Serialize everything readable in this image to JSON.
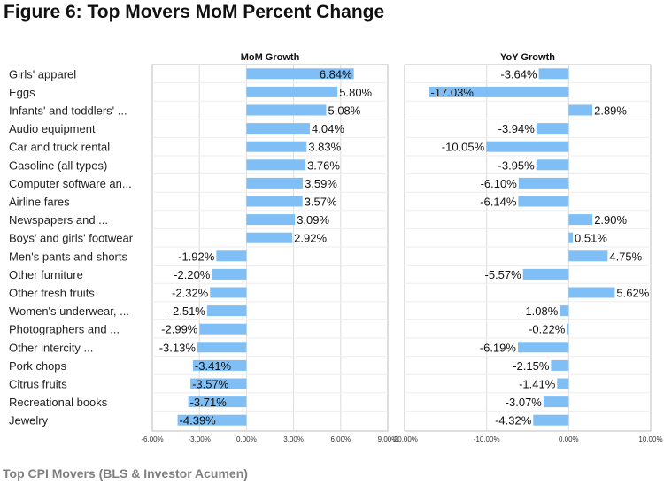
{
  "page": {
    "title": "Figure 6: Top Movers MoM Percent Change",
    "footer": "Top CPI Movers (BLS & Investor Acumen)"
  },
  "colors": {
    "bar": "#7fbff5",
    "grid": "#dcdcdc",
    "axis": "#bdbdbd"
  },
  "chart_data": {
    "type": "bar",
    "orientation": "horizontal",
    "categories": [
      "Girls' apparel",
      "Eggs",
      "Infants' and toddlers' ...",
      "Audio equipment",
      "Car and truck rental",
      "Gasoline (all types)",
      "Computer software an...",
      "Airline fares",
      "Newspapers and ...",
      "Boys' and girls' footwear",
      "Men's pants and shorts",
      "Other furniture",
      "Other fresh fruits",
      "Women's underwear, ...",
      "Photographers and ...",
      "Other intercity ...",
      "Pork chops",
      "Citrus fruits",
      "Recreational books",
      "Jewelry"
    ],
    "panels": [
      {
        "title": "MoM Growth",
        "xlim": [
          -6,
          9
        ],
        "ticks": [
          -6,
          -3,
          0,
          3,
          6,
          9
        ],
        "tick_labels": [
          "-6.00%",
          "-3.00%",
          "0.00%",
          "3.00%",
          "6.00%",
          "9.00%"
        ],
        "values": [
          6.84,
          5.8,
          5.08,
          4.04,
          3.83,
          3.76,
          3.59,
          3.57,
          3.09,
          2.92,
          -1.92,
          -2.2,
          -2.32,
          -2.51,
          -2.99,
          -3.13,
          -3.41,
          -3.57,
          -3.71,
          -4.39
        ],
        "value_labels": [
          "6.84%",
          "5.80%",
          "5.08%",
          "4.04%",
          "3.83%",
          "3.76%",
          "3.59%",
          "3.57%",
          "3.09%",
          "2.92%",
          "-1.92%",
          "-2.20%",
          "-2.32%",
          "-2.51%",
          "-2.99%",
          "-3.13%",
          "-3.41%",
          "-3.57%",
          "-3.71%",
          "-4.39%"
        ]
      },
      {
        "title": "YoY Growth",
        "xlim": [
          -20,
          10
        ],
        "ticks": [
          -20,
          -10,
          0,
          10
        ],
        "tick_labels": [
          "-20.00%",
          "-10.00%",
          "0.00%",
          "10.00%"
        ],
        "values": [
          -3.64,
          -17.03,
          2.89,
          -3.94,
          -10.05,
          -3.95,
          -6.1,
          -6.14,
          2.9,
          0.51,
          4.75,
          -5.57,
          5.62,
          -1.08,
          -0.22,
          -6.19,
          -2.15,
          -1.41,
          -3.07,
          -4.32
        ],
        "value_labels": [
          "-3.64%",
          "-17.03%",
          "2.89%",
          "-3.94%",
          "-10.05%",
          "-3.95%",
          "-6.10%",
          "-6.14%",
          "2.90%",
          "0.51%",
          "4.75%",
          "-5.57%",
          "5.62%",
          "-1.08%",
          "-0.22%",
          "-6.19%",
          "-2.15%",
          "-1.41%",
          "-3.07%",
          "-4.32%"
        ]
      }
    ]
  }
}
